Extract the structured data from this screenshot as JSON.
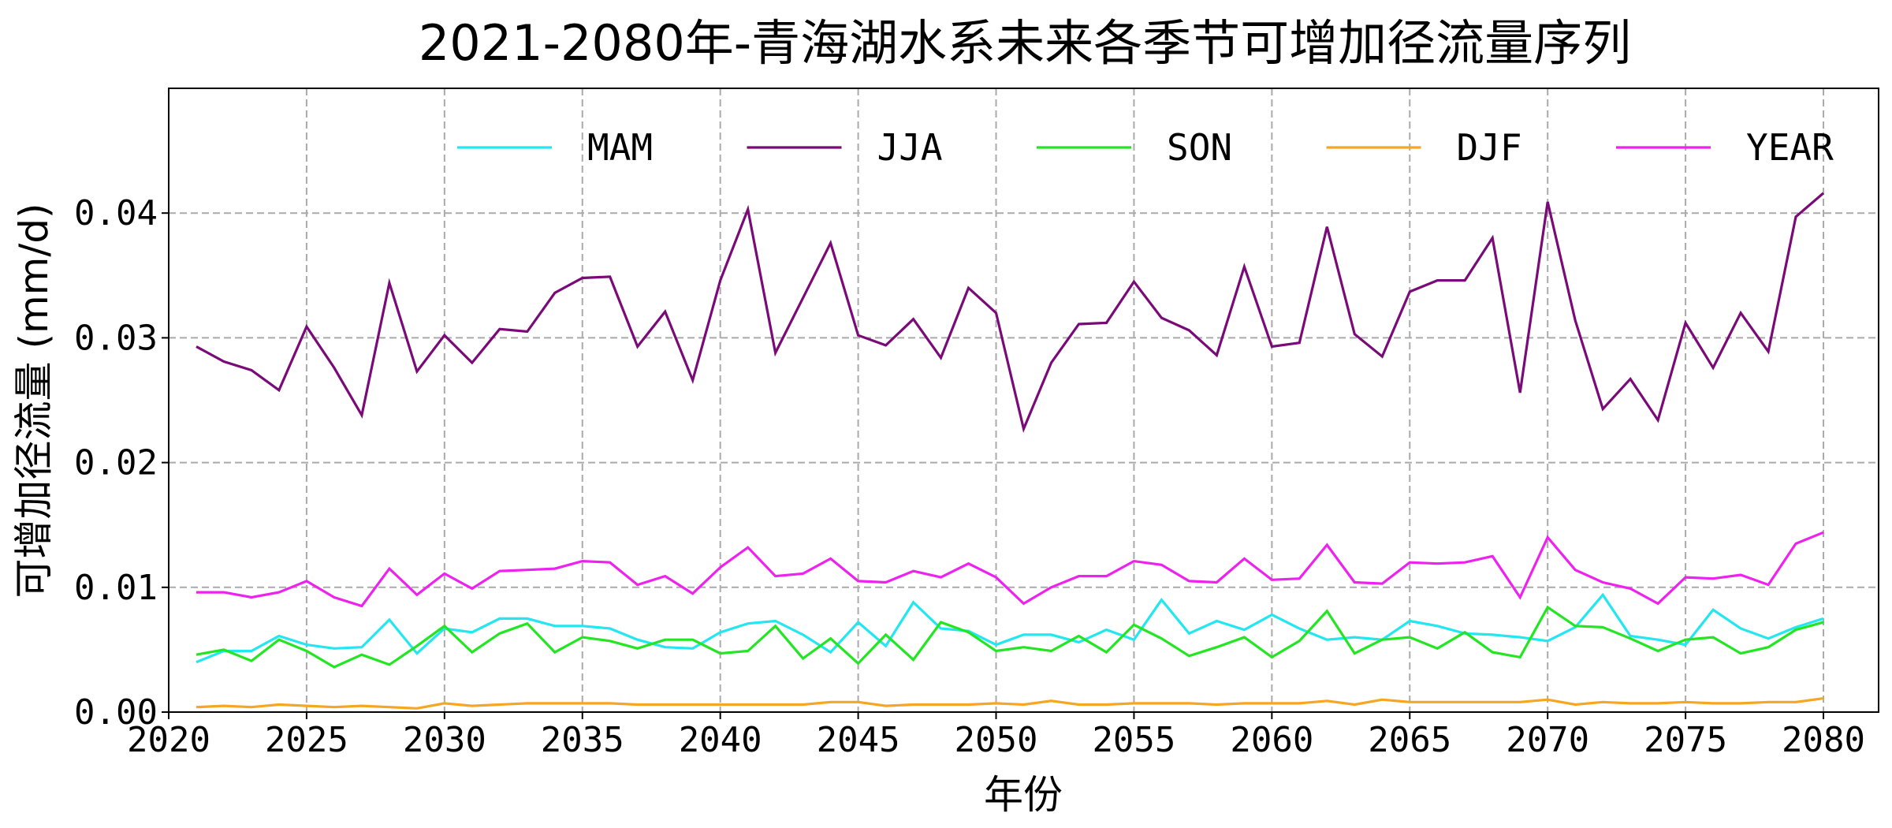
{
  "chart_data": {
    "type": "line",
    "title": "2021-2080年-青海湖水系未来各季节可增加径流量序列",
    "xlabel": "年份",
    "ylabel": "可增加径流量 (mm/d)",
    "xlim": [
      2020,
      2082
    ],
    "ylim": [
      0,
      0.05
    ],
    "xticks": [
      2020,
      2025,
      2030,
      2035,
      2040,
      2045,
      2050,
      2055,
      2060,
      2065,
      2070,
      2075,
      2080
    ],
    "yticks": [
      0.0,
      0.01,
      0.02,
      0.03,
      0.04
    ],
    "ytick_labels": [
      "0.00",
      "0.01",
      "0.02",
      "0.03",
      "0.04"
    ],
    "grid": true,
    "grid_style": "dashed",
    "legend_placement": "top",
    "x_start": 2021,
    "x_end": 2080,
    "series": [
      {
        "name": "MAM",
        "color": "#22e6f0",
        "values": [
          0.004,
          0.0049,
          0.0049,
          0.0061,
          0.0054,
          0.0051,
          0.0052,
          0.0074,
          0.0047,
          0.0067,
          0.0064,
          0.0075,
          0.0075,
          0.0069,
          0.0069,
          0.0067,
          0.0058,
          0.0052,
          0.0051,
          0.0064,
          0.0071,
          0.0073,
          0.0062,
          0.0048,
          0.0072,
          0.0053,
          0.0088,
          0.0067,
          0.0065,
          0.0054,
          0.0062,
          0.0062,
          0.0056,
          0.0066,
          0.0058,
          0.009,
          0.0063,
          0.0073,
          0.0066,
          0.0078,
          0.0067,
          0.0058,
          0.006,
          0.0058,
          0.0073,
          0.0069,
          0.0063,
          0.0062,
          0.006,
          0.0057,
          0.0068,
          0.0094,
          0.0061,
          0.0058,
          0.0054,
          0.0082,
          0.0067,
          0.0059,
          0.0068,
          0.0075
        ]
      },
      {
        "name": "JJA",
        "color": "#7a0a78",
        "values": [
          0.0293,
          0.0281,
          0.0274,
          0.0258,
          0.0309,
          0.0276,
          0.0238,
          0.0344,
          0.0273,
          0.0302,
          0.028,
          0.0307,
          0.0305,
          0.0336,
          0.0348,
          0.0349,
          0.0293,
          0.0321,
          0.0266,
          0.0346,
          0.0403,
          0.0288,
          0.0332,
          0.0376,
          0.0302,
          0.0294,
          0.0315,
          0.0284,
          0.034,
          0.032,
          0.0227,
          0.028,
          0.0311,
          0.0312,
          0.0345,
          0.0316,
          0.0306,
          0.0286,
          0.0357,
          0.0293,
          0.0296,
          0.0389,
          0.0303,
          0.0285,
          0.0337,
          0.0346,
          0.0346,
          0.038,
          0.0256,
          0.0409,
          0.0314,
          0.0243,
          0.0267,
          0.0234,
          0.0312,
          0.0276,
          0.032,
          0.0289,
          0.0397,
          0.0416
        ]
      },
      {
        "name": "SON",
        "color": "#22e622",
        "values": [
          0.0046,
          0.005,
          0.0041,
          0.0058,
          0.0049,
          0.0036,
          0.0046,
          0.0038,
          0.0053,
          0.0069,
          0.0048,
          0.0063,
          0.0071,
          0.0048,
          0.006,
          0.0057,
          0.0051,
          0.0058,
          0.0058,
          0.0047,
          0.0049,
          0.0069,
          0.0043,
          0.0059,
          0.0039,
          0.0062,
          0.0042,
          0.0072,
          0.0064,
          0.0049,
          0.0052,
          0.0049,
          0.0061,
          0.0048,
          0.007,
          0.0059,
          0.0045,
          0.0052,
          0.006,
          0.0044,
          0.0057,
          0.0081,
          0.0047,
          0.0058,
          0.006,
          0.0051,
          0.0064,
          0.0048,
          0.0044,
          0.0084,
          0.0069,
          0.0068,
          0.0059,
          0.0049,
          0.0058,
          0.006,
          0.0047,
          0.0052,
          0.0066,
          0.0072
        ]
      },
      {
        "name": "DJF",
        "color": "#f5a623",
        "values": [
          0.0004,
          0.0005,
          0.0004,
          0.0006,
          0.0005,
          0.0004,
          0.0005,
          0.0004,
          0.0003,
          0.0007,
          0.0005,
          0.0006,
          0.0007,
          0.0007,
          0.0007,
          0.0007,
          0.0006,
          0.0006,
          0.0006,
          0.0006,
          0.0006,
          0.0006,
          0.0006,
          0.0008,
          0.0008,
          0.0005,
          0.0006,
          0.0006,
          0.0006,
          0.0007,
          0.0006,
          0.0009,
          0.0006,
          0.0006,
          0.0007,
          0.0007,
          0.0007,
          0.0006,
          0.0007,
          0.0007,
          0.0007,
          0.0009,
          0.0006,
          0.001,
          0.0008,
          0.0008,
          0.0008,
          0.0008,
          0.0008,
          0.001,
          0.0006,
          0.0008,
          0.0007,
          0.0007,
          0.0008,
          0.0007,
          0.0007,
          0.0008,
          0.0008,
          0.0011
        ]
      },
      {
        "name": "YEAR",
        "color": "#ee22ee",
        "values": [
          0.0096,
          0.0096,
          0.0092,
          0.0096,
          0.0105,
          0.0092,
          0.0085,
          0.0115,
          0.0094,
          0.0111,
          0.0099,
          0.0113,
          0.0114,
          0.0115,
          0.0121,
          0.012,
          0.0102,
          0.0109,
          0.0095,
          0.0116,
          0.0132,
          0.0109,
          0.0111,
          0.0123,
          0.0105,
          0.0104,
          0.0113,
          0.0108,
          0.0119,
          0.0108,
          0.0087,
          0.01,
          0.0109,
          0.0109,
          0.0121,
          0.0118,
          0.0105,
          0.0104,
          0.0123,
          0.0106,
          0.0107,
          0.0134,
          0.0104,
          0.0103,
          0.012,
          0.0119,
          0.012,
          0.0125,
          0.0092,
          0.014,
          0.0114,
          0.0104,
          0.0099,
          0.0087,
          0.0108,
          0.0107,
          0.011,
          0.0102,
          0.0135,
          0.0144
        ]
      }
    ]
  }
}
